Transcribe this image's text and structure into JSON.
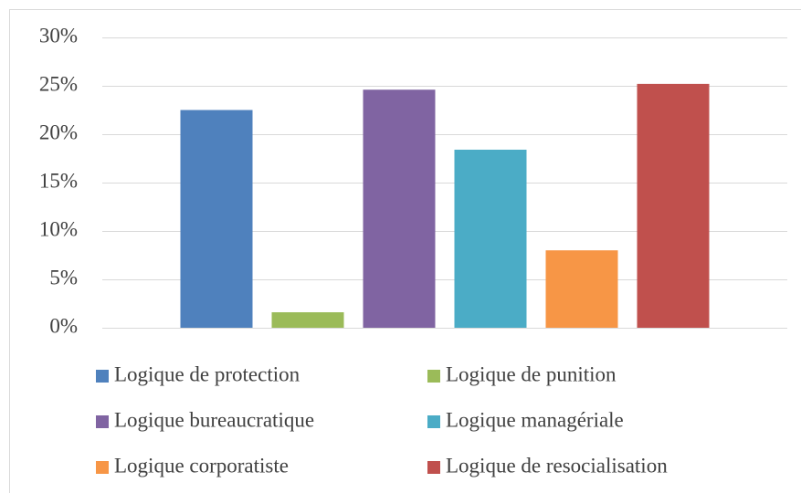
{
  "chart_data": {
    "type": "bar",
    "categories": [
      null
    ],
    "series": [
      {
        "name": "Logique de protection",
        "color": "#4f81bd",
        "values": [
          22.5
        ]
      },
      {
        "name": "Logique de punition",
        "color": "#9bbb59",
        "values": [
          1.6
        ]
      },
      {
        "name": "Logique bureaucratique",
        "color": "#8064a2",
        "values": [
          24.6
        ]
      },
      {
        "name": "Logique managériale",
        "color": "#4bacc6",
        "values": [
          18.4
        ]
      },
      {
        "name": "Logique corporatiste",
        "color": "#f79646",
        "values": [
          8.0
        ]
      },
      {
        "name": "Logique de resocialisation",
        "color": "#c0504d",
        "values": [
          25.2
        ]
      }
    ],
    "ylim": [
      0,
      30
    ],
    "yticks": [
      {
        "value": 0,
        "label": "0%"
      },
      {
        "value": 5,
        "label": "5%"
      },
      {
        "value": 10,
        "label": "10%"
      },
      {
        "value": 15,
        "label": "15%"
      },
      {
        "value": 20,
        "label": "20%"
      },
      {
        "value": 25,
        "label": "25%"
      },
      {
        "value": 30,
        "label": "30%"
      }
    ],
    "grid": true,
    "legend": "bottom"
  }
}
